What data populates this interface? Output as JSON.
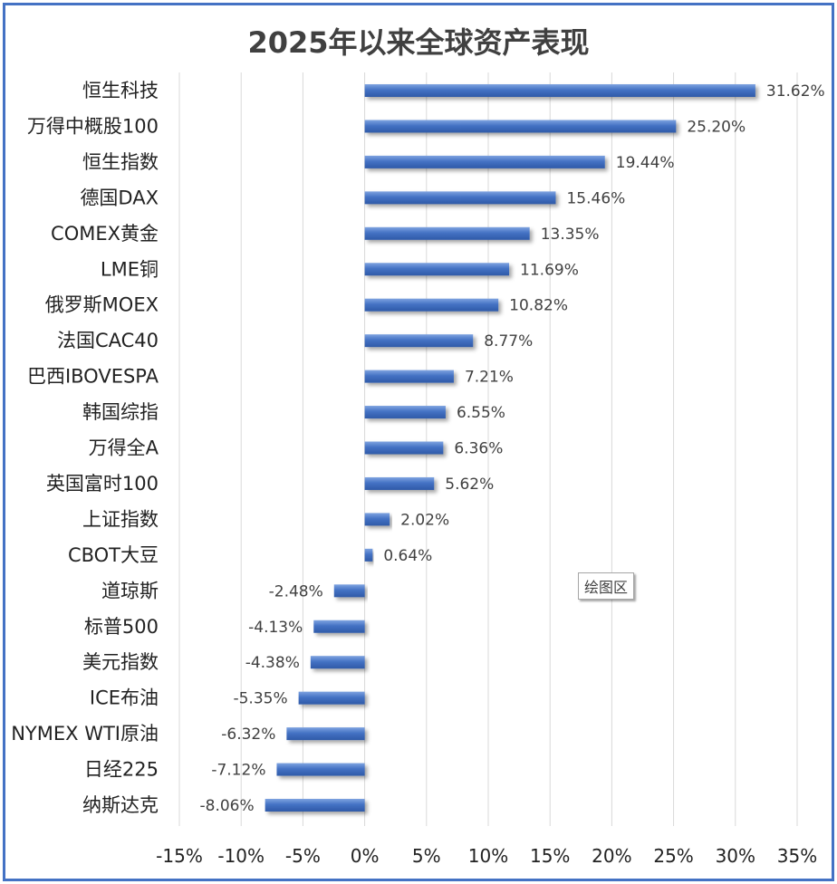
{
  "chart_data": {
    "type": "bar",
    "orientation": "horizontal",
    "title": "2025年以来全球资产表现",
    "categories": [
      "恒生科技",
      "万得中概股100",
      "恒生指数",
      "德国DAX",
      "COMEX黄金",
      "LME铜",
      "俄罗斯MOEX",
      "法国CAC40",
      "巴西IBOVESPA",
      "韩国综指",
      "万得全A",
      "英国富时100",
      "上证指数",
      "CBOT大豆",
      "道琼斯",
      "标普500",
      "美元指数",
      "ICE布油",
      "NYMEX WTI原油",
      "日经225",
      "纳斯达克"
    ],
    "values": [
      31.62,
      25.2,
      19.44,
      15.46,
      13.35,
      11.69,
      10.82,
      8.77,
      7.21,
      6.55,
      6.36,
      5.62,
      2.02,
      0.64,
      -2.48,
      -4.13,
      -4.38,
      -5.35,
      -6.32,
      -7.12,
      -8.06
    ],
    "value_labels": [
      "31.62%",
      "25.20%",
      "19.44%",
      "15.46%",
      "13.35%",
      "11.69%",
      "10.82%",
      "8.77%",
      "7.21%",
      "6.55%",
      "6.36%",
      "5.62%",
      "2.02%",
      "0.64%",
      "-2.48%",
      "-4.13%",
      "-4.38%",
      "-5.35%",
      "-6.32%",
      "-7.12%",
      "-8.06%"
    ],
    "xlim": [
      -15,
      35
    ],
    "x_ticks": [
      -15,
      -10,
      -5,
      0,
      5,
      10,
      15,
      20,
      25,
      30,
      35
    ],
    "x_tick_labels": [
      "-15%",
      "-10%",
      "-5%",
      "0%",
      "5%",
      "10%",
      "15%",
      "20%",
      "25%",
      "30%",
      "35%"
    ],
    "grid": true,
    "bar_color": "#4472C4"
  },
  "tooltip": "绘图区",
  "colors": {
    "border": "#4472C4",
    "grid": "#d9d9d9"
  }
}
